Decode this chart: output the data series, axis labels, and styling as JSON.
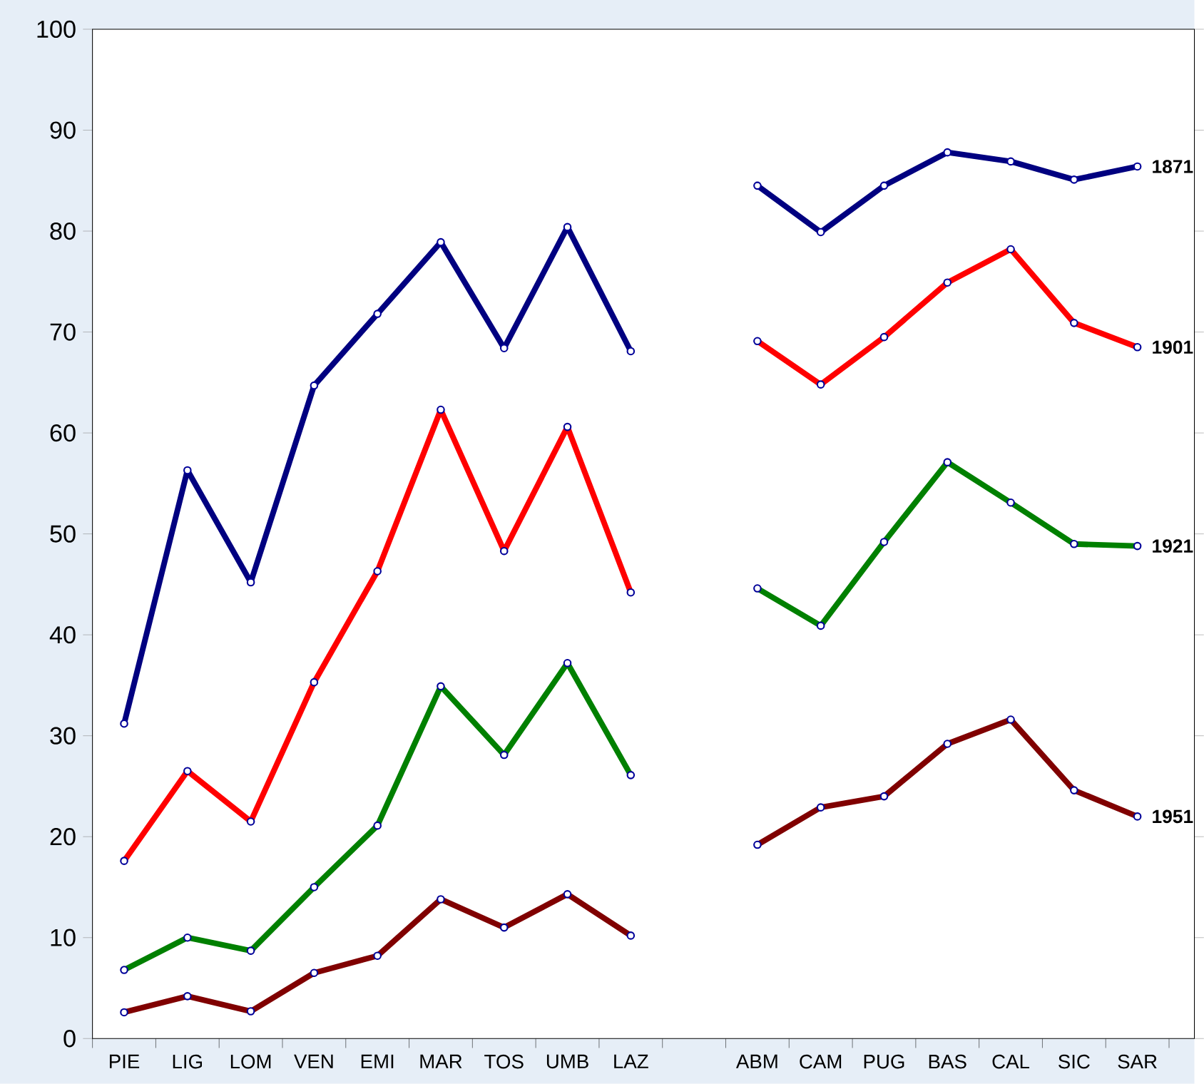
{
  "chart_data": {
    "type": "line",
    "categories": [
      "PIE",
      "LIG",
      "LOM",
      "VEN",
      "EMI",
      "MAR",
      "TOS",
      "UMB",
      "LAZ",
      null,
      "ABM",
      "CAM",
      "PUG",
      "BAS",
      "CAL",
      "SIC",
      "SAR"
    ],
    "series": [
      {
        "name": "1871",
        "color": "#000080",
        "values": [
          31.2,
          56.3,
          45.2,
          64.7,
          71.8,
          78.9,
          68.4,
          80.4,
          68.1,
          null,
          84.5,
          79.9,
          84.5,
          87.8,
          86.9,
          85.1,
          86.4
        ]
      },
      {
        "name": "1901",
        "color": "#ff0000",
        "values": [
          17.6,
          26.5,
          21.5,
          35.3,
          46.3,
          62.3,
          48.3,
          60.6,
          44.2,
          null,
          69.1,
          64.8,
          69.5,
          74.9,
          78.2,
          70.9,
          68.5
        ]
      },
      {
        "name": "1921",
        "color": "#008000",
        "values": [
          6.8,
          10.0,
          8.7,
          15.0,
          21.1,
          34.9,
          28.1,
          37.2,
          26.1,
          null,
          44.6,
          40.9,
          49.2,
          57.1,
          53.1,
          49.0,
          48.8
        ]
      },
      {
        "name": "1951",
        "color": "#800000",
        "values": [
          2.6,
          4.2,
          2.7,
          6.5,
          8.2,
          13.8,
          11.0,
          14.3,
          10.2,
          null,
          19.2,
          22.9,
          24.0,
          29.2,
          31.6,
          24.6,
          22.0
        ]
      }
    ],
    "ylim": [
      0,
      100
    ],
    "yticks": [
      0,
      10,
      20,
      30,
      40,
      50,
      60,
      70,
      80,
      90,
      100
    ],
    "grid": false,
    "marker": "circle",
    "line_style": "solid"
  }
}
